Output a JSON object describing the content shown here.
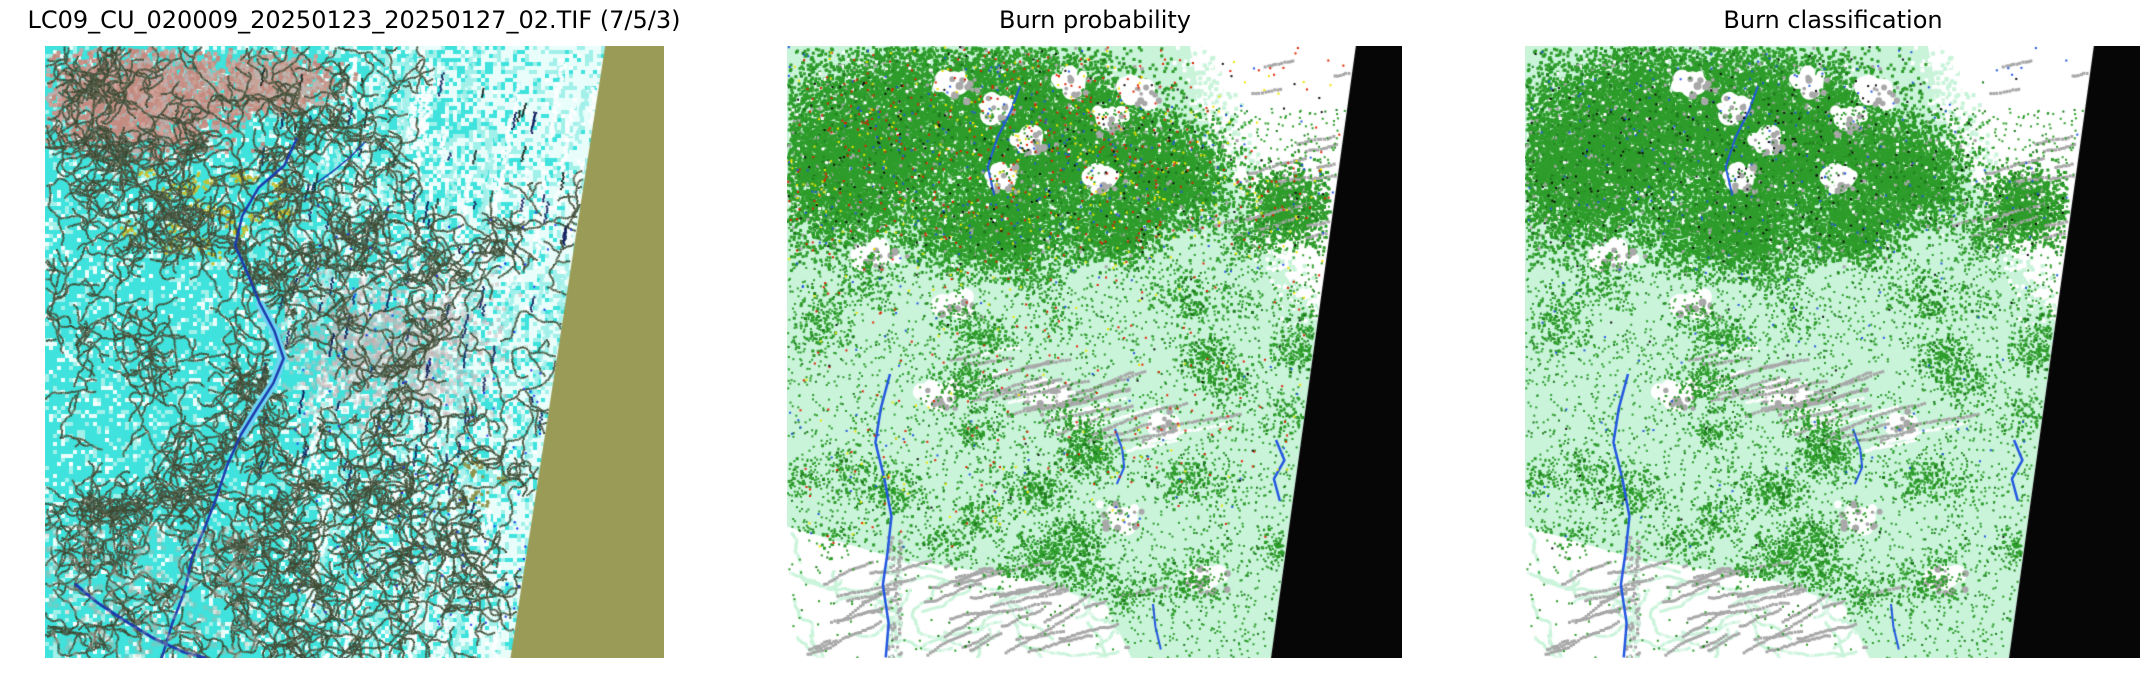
{
  "figure": {
    "background": "#ffffff",
    "panels": [
      {
        "id": "scene",
        "title": "LC09_CU_020009_20250123_20250127_02.TIF (7/5/3)",
        "kind": "false-color-satellite-image"
      },
      {
        "id": "probability",
        "title": "Burn probability",
        "kind": "classified-raster-map"
      },
      {
        "id": "classification",
        "title": "Burn classification",
        "kind": "classified-raster-map"
      }
    ],
    "colors": {
      "title_text": "#000000",
      "scene_snow_cyan": "#3fe2dc",
      "scene_cyan_light": "#a2f0ea",
      "scene_cloud_white": "#e9fefb",
      "scene_pink": "#c48b80",
      "scene_mauve": "#c3b1b2",
      "scene_yellow": "#c6c02f",
      "scene_drainage_dark": "#46523e",
      "scene_shadow_navy": "#12215e",
      "scene_river_blue": "#1c3cae",
      "scene_river_light": "#6cd4f2",
      "scene_nodata_olive": "#9a9b56",
      "raster_mint": "#c9f4da",
      "raster_forest_green": "#2e9d2b",
      "raster_dark_green": "#1d7a1d",
      "raster_cloud_gray": "#a8a8a8",
      "raster_white": "#ffffff",
      "raster_water_blue": "#2257e0",
      "raster_prob_red": "#e02200",
      "raster_prob_yellow": "#f0e400",
      "raster_black": "#060606"
    }
  }
}
